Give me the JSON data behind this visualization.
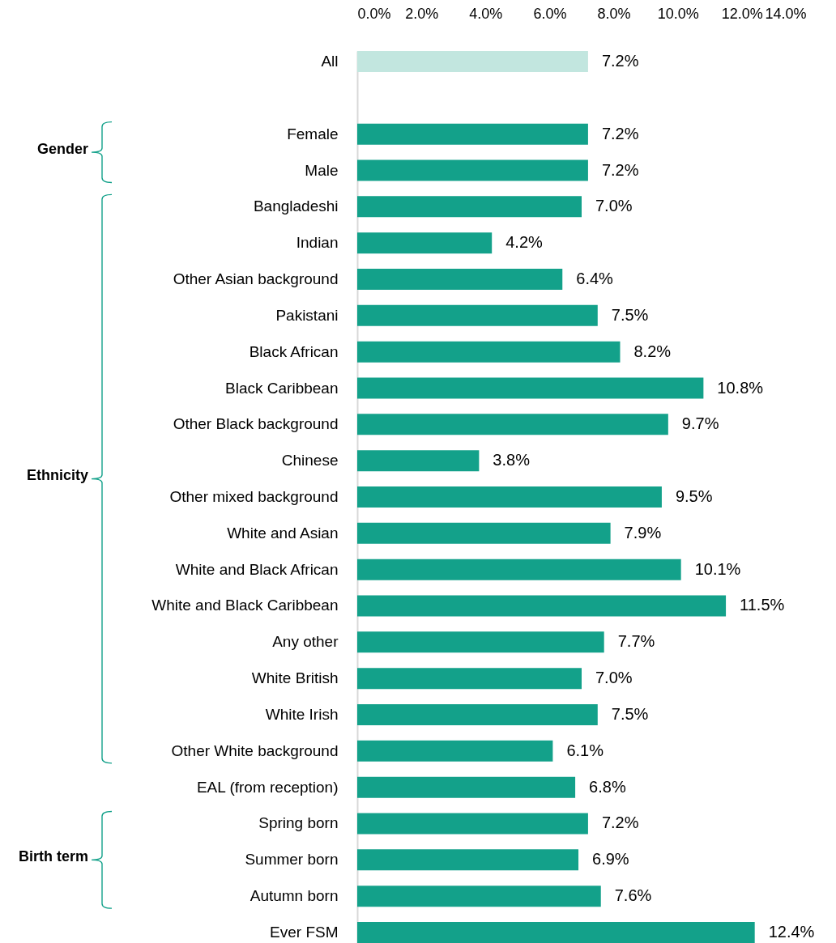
{
  "chart_data": {
    "type": "bar",
    "orientation": "horizontal",
    "categories": [
      "All",
      null,
      "Female",
      "Male",
      "Bangladeshi",
      "Indian",
      "Other Asian background",
      "Pakistani",
      "Black African",
      "Black Caribbean",
      "Other Black background",
      "Chinese",
      "Other mixed background",
      "White and Asian",
      "White and Black African",
      "White and Black Caribbean",
      "Any other",
      "White British",
      "White Irish",
      "Other White background",
      "EAL (from reception)",
      "Spring born",
      "Summer born",
      "Autumn born",
      "Ever FSM"
    ],
    "values": [
      7.2,
      null,
      7.2,
      7.2,
      7.0,
      4.2,
      6.4,
      7.5,
      8.2,
      10.8,
      9.7,
      3.8,
      9.5,
      7.9,
      10.1,
      11.5,
      7.7,
      7.0,
      7.5,
      6.1,
      6.8,
      7.2,
      6.9,
      7.6,
      12.4
    ],
    "value_labels": [
      "7.2%",
      null,
      "7.2%",
      "7.2%",
      "7.0%",
      "4.2%",
      "6.4%",
      "7.5%",
      "8.2%",
      "10.8%",
      "9.7%",
      "3.8%",
      "9.5%",
      "7.9%",
      "10.1%",
      "11.5%",
      "7.7%",
      "7.0%",
      "7.5%",
      "6.1%",
      "6.8%",
      "7.2%",
      "6.9%",
      "7.6%",
      "12.4%"
    ],
    "colors": [
      "#c2e6df",
      null,
      "#13a18a",
      "#13a18a",
      "#13a18a",
      "#13a18a",
      "#13a18a",
      "#13a18a",
      "#13a18a",
      "#13a18a",
      "#13a18a",
      "#13a18a",
      "#13a18a",
      "#13a18a",
      "#13a18a",
      "#13a18a",
      "#13a18a",
      "#13a18a",
      "#13a18a",
      "#13a18a",
      "#13a18a",
      "#13a18a",
      "#13a18a",
      "#13a18a",
      "#13a18a"
    ],
    "xlim": [
      0,
      14
    ],
    "xticks": [
      {
        "value": 0,
        "label": "0.0%"
      },
      {
        "value": 2,
        "label": "2.0%"
      },
      {
        "value": 4,
        "label": "4.0%"
      },
      {
        "value": 6,
        "label": "6.0%"
      },
      {
        "value": 8,
        "label": "8.0%"
      },
      {
        "value": 10,
        "label": "10.0%"
      },
      {
        "value": 12,
        "label": "12.0%"
      },
      {
        "value": 14,
        "label": "14.0%"
      }
    ],
    "annotations": [
      "Gender",
      "Ethnicity",
      "Birth term"
    ]
  }
}
